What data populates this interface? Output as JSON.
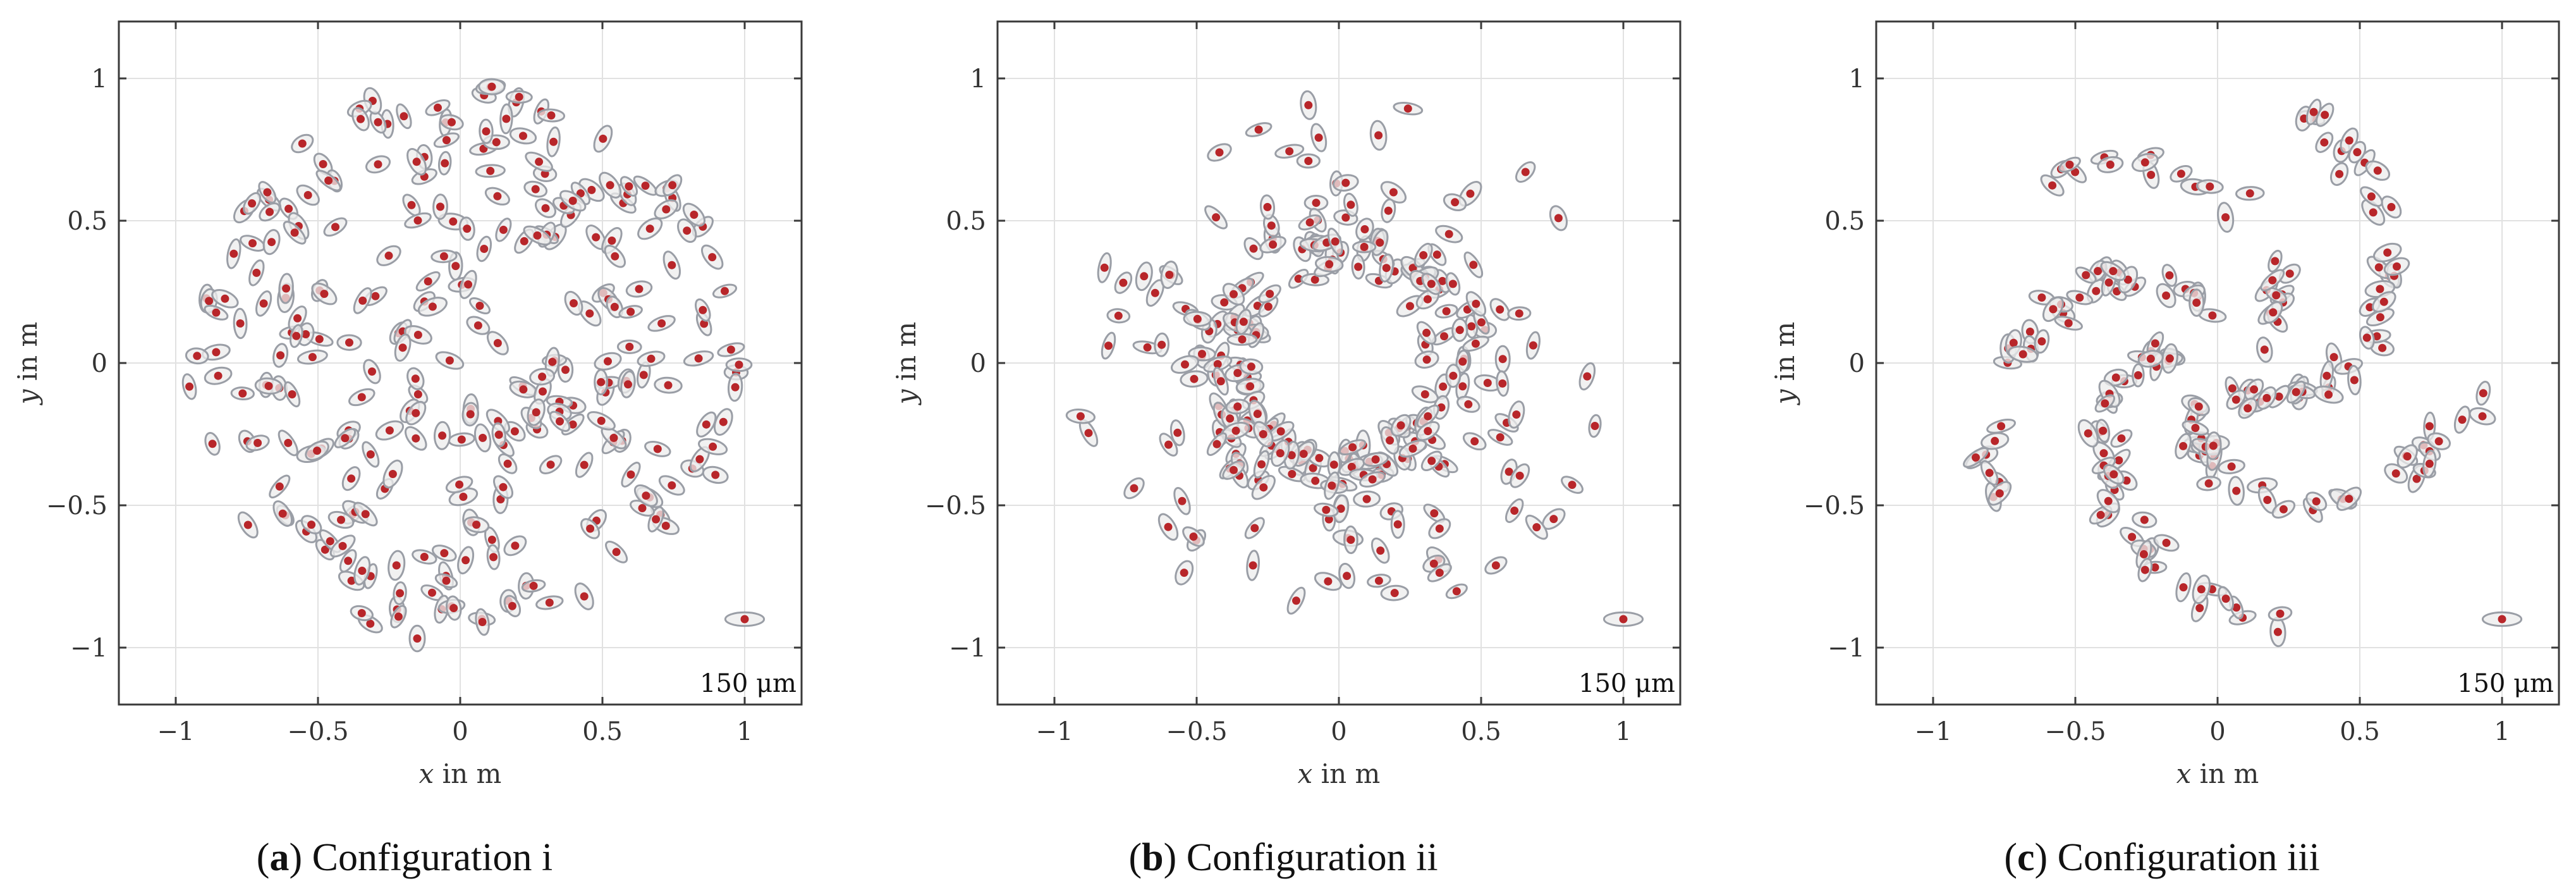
{
  "figure": {
    "colors": {
      "marker": "#b8262a",
      "ellipse_stroke": "#9a9ea6",
      "ellipse_fill": "#ececec",
      "grid": "#e1e1e1"
    },
    "panels": [
      {
        "id": "a",
        "caption_letter": "a",
        "caption_open": "(",
        "caption_close": ")",
        "caption_text": "Configuration i",
        "xlabel_var": "x",
        "xlabel_rest": " in m",
        "ylabel_var": "y",
        "ylabel_rest": " in m",
        "scale_label": "150 μm"
      },
      {
        "id": "b",
        "caption_letter": "b",
        "caption_open": "(",
        "caption_close": ")",
        "caption_text": "Configuration ii",
        "xlabel_var": "x",
        "xlabel_rest": " in m",
        "ylabel_var": "y",
        "ylabel_rest": " in m",
        "scale_label": "150 μm"
      },
      {
        "id": "c",
        "caption_letter": "c",
        "caption_open": "(",
        "caption_close": ")",
        "caption_text": "Configuration iii",
        "xlabel_var": "x",
        "xlabel_rest": " in m",
        "ylabel_var": "y",
        "ylabel_rest": " in m",
        "scale_label": "150 μm"
      }
    ]
  },
  "chart_data": [
    {
      "type": "scatter",
      "title": "Configuration i",
      "xlabel": "x in m",
      "ylabel": "y in m",
      "xlim": [
        -1.2,
        1.2
      ],
      "ylim": [
        -1.2,
        1.2
      ],
      "xticks": [
        -1,
        -0.5,
        0,
        0.5,
        1
      ],
      "xtick_labels": [
        "−1",
        "−0.5",
        "0",
        "0.5",
        "1"
      ],
      "yticks": [
        -1,
        -0.5,
        0,
        0.5,
        1
      ],
      "ytick_labels": [
        "−1",
        "−0.5",
        "0",
        "0.5",
        "1"
      ],
      "grid": true,
      "scale_reference": {
        "x": 1.0,
        "y": -0.9,
        "label": "150 μm"
      },
      "layout": "dense disk",
      "n_points": 280,
      "points": []
    },
    {
      "type": "scatter",
      "title": "Configuration ii",
      "xlabel": "x in m",
      "ylabel": "y in m",
      "xlim": [
        -1.2,
        1.2
      ],
      "ylim": [
        -1.2,
        1.2
      ],
      "xticks": [
        -1,
        -0.5,
        0,
        0.5,
        1
      ],
      "xtick_labels": [
        "−1",
        "−0.5",
        "0",
        "0.5",
        "1"
      ],
      "yticks": [
        -1,
        -0.5,
        0,
        0.5,
        1
      ],
      "ytick_labels": [
        "−1",
        "−0.5",
        "0",
        "0.5",
        "1"
      ],
      "grid": true,
      "scale_reference": {
        "x": 1.0,
        "y": -0.9,
        "label": "150 μm"
      },
      "layout": "ring",
      "n_points": 260,
      "points": []
    },
    {
      "type": "scatter",
      "title": "Configuration iii",
      "xlabel": "x in m",
      "ylabel": "y in m",
      "xlim": [
        -1.2,
        1.2
      ],
      "ylim": [
        -1.2,
        1.2
      ],
      "xticks": [
        -1,
        -0.5,
        0,
        0.5,
        1
      ],
      "xtick_labels": [
        "−1",
        "−0.5",
        "0",
        "0.5",
        "1"
      ],
      "yticks": [
        -1,
        -0.5,
        0,
        0.5,
        1
      ],
      "ytick_labels": [
        "−1",
        "−0.5",
        "0",
        "0.5",
        "1"
      ],
      "grid": true,
      "scale_reference": {
        "x": 1.0,
        "y": -0.9,
        "label": "150 μm"
      },
      "layout": "spiral arms",
      "n_points": 200,
      "points": []
    }
  ]
}
